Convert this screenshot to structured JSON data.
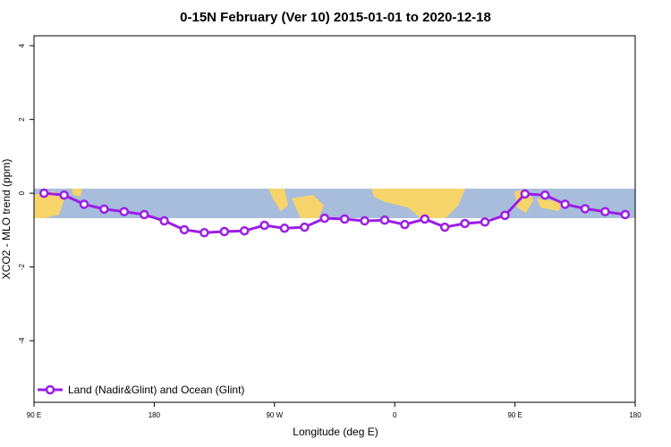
{
  "chart_data": {
    "type": "line",
    "title": "0-15N February (Ver 10)   2015-01-01 to 2020-12-18",
    "x_label": "Longitude (deg E)",
    "y_label": "XCO2 - MLO trend (ppm)",
    "x": [
      97.5,
      112.5,
      127.5,
      142.5,
      157.5,
      172.5,
      187.5,
      202.5,
      217.5,
      232.5,
      247.5,
      262.5,
      277.5,
      292.5,
      307.5,
      322.5,
      337.5,
      352.5,
      367.5,
      382.5,
      397.5,
      412.5,
      427.5,
      442.5,
      457.5,
      472.5,
      487.5,
      502.5,
      517.5,
      532.5
    ],
    "series": [
      {
        "name": "Land (Nadir&Glint) and Ocean (Glint)",
        "color": "#9b1ee6",
        "values": [
          0.0,
          -0.05,
          -0.3,
          -0.43,
          -0.5,
          -0.58,
          -0.75,
          -0.99,
          -1.07,
          -1.04,
          -1.02,
          -0.87,
          -0.95,
          -0.92,
          -0.68,
          -0.7,
          -0.75,
          -0.73,
          -0.85,
          -0.7,
          -0.92,
          -0.82,
          -0.78,
          -0.6,
          -0.02,
          -0.05,
          -0.3,
          -0.42,
          -0.5,
          -0.58
        ]
      }
    ],
    "xlim": [
      90,
      540
    ],
    "xticks": [
      {
        "value": 90,
        "label": "90 E"
      },
      {
        "value": 180,
        "label": "180"
      },
      {
        "value": 270,
        "label": "90 W"
      },
      {
        "value": 360,
        "label": "0"
      },
      {
        "value": 450,
        "label": "90 E"
      },
      {
        "value": 540,
        "label": "180"
      }
    ],
    "ylim": [
      -5.67,
      4.27
    ],
    "yticks": [
      -4,
      -2,
      0,
      2,
      4
    ],
    "legend": "bottom-left"
  }
}
